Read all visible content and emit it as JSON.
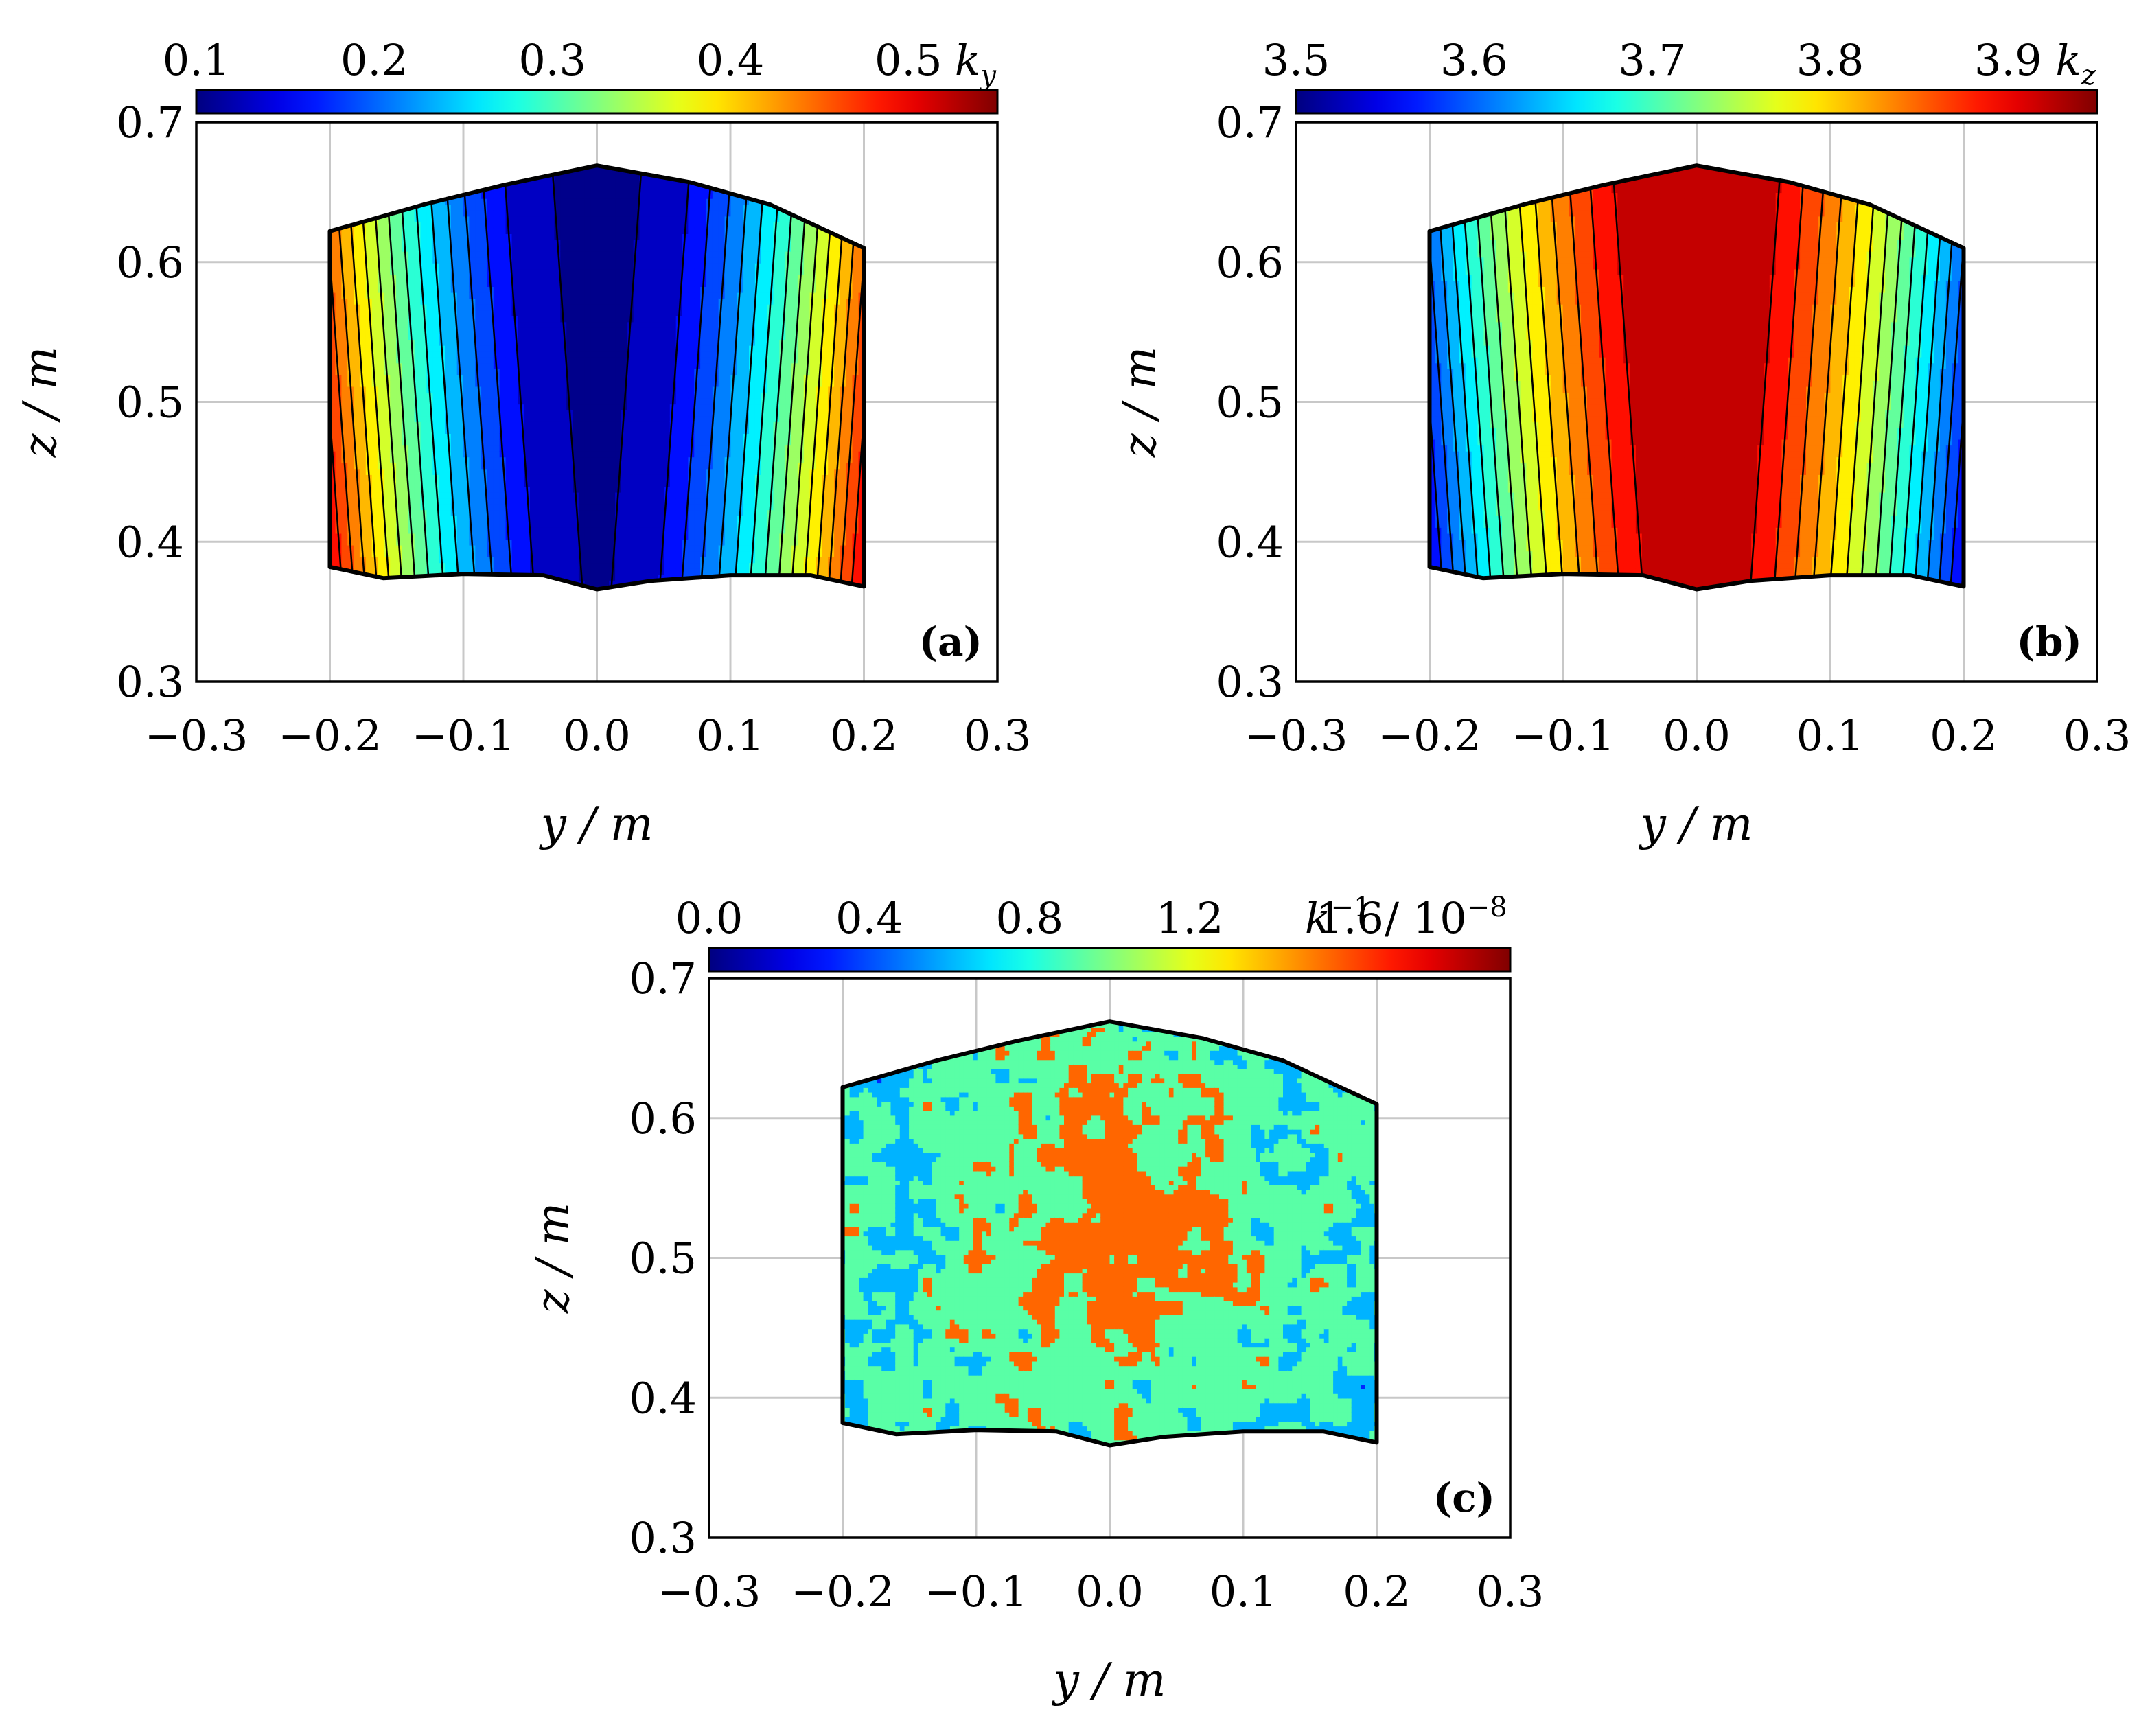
{
  "chart_data": [
    {
      "type": "contour",
      "panel_label": "(a)",
      "xlabel": "y / m",
      "ylabel": "z / m",
      "xlim": [
        -0.3,
        0.3
      ],
      "ylim": [
        0.3,
        0.7
      ],
      "xticks": [
        "−0.3",
        "−0.2",
        "−0.1",
        "0.0",
        "0.1",
        "0.2",
        "0.3"
      ],
      "yticks": [
        "0.3",
        "0.4",
        "0.5",
        "0.6",
        "0.7"
      ],
      "grid": true,
      "colorbar": {
        "label_base": "k",
        "label_sub": "y",
        "label_sup": "",
        "label_tail": "",
        "range": [
          0.1,
          0.55
        ],
        "ticks": [
          "0.1",
          "0.2",
          "0.3",
          "0.4",
          "0.5"
        ],
        "tick_values": [
          0.1,
          0.2,
          0.3,
          0.4,
          0.5
        ],
        "colormap": "jet"
      },
      "field": {
        "model": "parabolic",
        "min": 0.1,
        "max": 0.55,
        "contour_levels": [
          0.11,
          0.15,
          0.175,
          0.2,
          0.225,
          0.25,
          0.275,
          0.3,
          0.325,
          0.35,
          0.375,
          0.4,
          0.425,
          0.45,
          0.475,
          0.5,
          0.525
        ]
      },
      "domain_boundary": {
        "top": [
          [
            -0.2,
            0.622
          ],
          [
            -0.13,
            0.641
          ],
          [
            -0.07,
            0.655
          ],
          [
            0.0,
            0.669
          ],
          [
            0.07,
            0.657
          ],
          [
            0.13,
            0.641
          ],
          [
            0.2,
            0.61
          ]
        ],
        "bottom": [
          [
            -0.2,
            0.382
          ],
          [
            -0.16,
            0.374
          ],
          [
            -0.1,
            0.377
          ],
          [
            -0.04,
            0.376
          ],
          [
            0.0,
            0.366
          ],
          [
            0.04,
            0.372
          ],
          [
            0.1,
            0.376
          ],
          [
            0.16,
            0.376
          ],
          [
            0.2,
            0.368
          ]
        ]
      }
    },
    {
      "type": "contour",
      "panel_label": "(b)",
      "xlabel": "y / m",
      "ylabel": "z / m",
      "xlim": [
        -0.3,
        0.3
      ],
      "ylim": [
        0.3,
        0.7
      ],
      "xticks": [
        "−0.3",
        "−0.2",
        "−0.1",
        "0.0",
        "0.1",
        "0.2",
        "0.3"
      ],
      "yticks": [
        "0.3",
        "0.4",
        "0.5",
        "0.6",
        "0.7"
      ],
      "grid": true,
      "colorbar": {
        "label_base": "k",
        "label_sub": "z",
        "label_sup": "",
        "label_tail": "",
        "range": [
          3.5,
          3.95
        ],
        "ticks": [
          "3.5",
          "3.6",
          "3.7",
          "3.8",
          "3.9"
        ],
        "tick_values": [
          3.5,
          3.6,
          3.7,
          3.8,
          3.9
        ],
        "colormap": "jet"
      },
      "field": {
        "model": "parabolic-inverted",
        "min": 3.5,
        "max": 3.94,
        "contour_levels": [
          3.53,
          3.55,
          3.575,
          3.6,
          3.625,
          3.65,
          3.675,
          3.7,
          3.725,
          3.75,
          3.775,
          3.8,
          3.825,
          3.85,
          3.875,
          3.9
        ]
      },
      "domain_boundary": {
        "top": [
          [
            -0.2,
            0.622
          ],
          [
            -0.13,
            0.641
          ],
          [
            -0.07,
            0.655
          ],
          [
            0.0,
            0.669
          ],
          [
            0.07,
            0.657
          ],
          [
            0.13,
            0.641
          ],
          [
            0.2,
            0.61
          ]
        ],
        "bottom": [
          [
            -0.2,
            0.382
          ],
          [
            -0.16,
            0.374
          ],
          [
            -0.1,
            0.377
          ],
          [
            -0.04,
            0.376
          ],
          [
            0.0,
            0.366
          ],
          [
            0.04,
            0.372
          ],
          [
            0.1,
            0.376
          ],
          [
            0.16,
            0.376
          ],
          [
            0.2,
            0.368
          ]
        ]
      }
    },
    {
      "type": "contour",
      "panel_label": "(c)",
      "xlabel": "y / m",
      "ylabel": "z / m",
      "xlim": [
        -0.3,
        0.3
      ],
      "ylim": [
        0.3,
        0.7
      ],
      "xticks": [
        "−0.3",
        "−0.2",
        "−0.1",
        "0.0",
        "0.1",
        "0.2",
        "0.3"
      ],
      "yticks": [
        "0.3",
        "0.4",
        "0.5",
        "0.6",
        "0.7"
      ],
      "grid": true,
      "colorbar": {
        "label_base": "k",
        "label_sub": "",
        "label_sup": "−1",
        "label_tail": " / 10",
        "label_tail_sup": "−8",
        "range": [
          0.0,
          2.0
        ],
        "ticks": [
          "0.0",
          "0.4",
          "0.8",
          "1.2",
          "1.6"
        ],
        "tick_values": [
          0.0,
          0.4,
          0.8,
          1.2,
          1.6
        ],
        "colormap": "jet"
      },
      "field": {
        "model": "noise",
        "min": 0.0,
        "max": 2.0,
        "contour_levels": [
          0.2,
          0.45,
          0.75,
          1.1
        ]
      },
      "domain_boundary": {
        "top": [
          [
            -0.2,
            0.622
          ],
          [
            -0.13,
            0.641
          ],
          [
            -0.07,
            0.655
          ],
          [
            0.0,
            0.669
          ],
          [
            0.07,
            0.657
          ],
          [
            0.13,
            0.641
          ],
          [
            0.2,
            0.61
          ]
        ],
        "bottom": [
          [
            -0.2,
            0.382
          ],
          [
            -0.16,
            0.374
          ],
          [
            -0.1,
            0.377
          ],
          [
            -0.04,
            0.376
          ],
          [
            0.0,
            0.366
          ],
          [
            0.04,
            0.372
          ],
          [
            0.1,
            0.376
          ],
          [
            0.16,
            0.376
          ],
          [
            0.2,
            0.368
          ]
        ]
      }
    }
  ]
}
